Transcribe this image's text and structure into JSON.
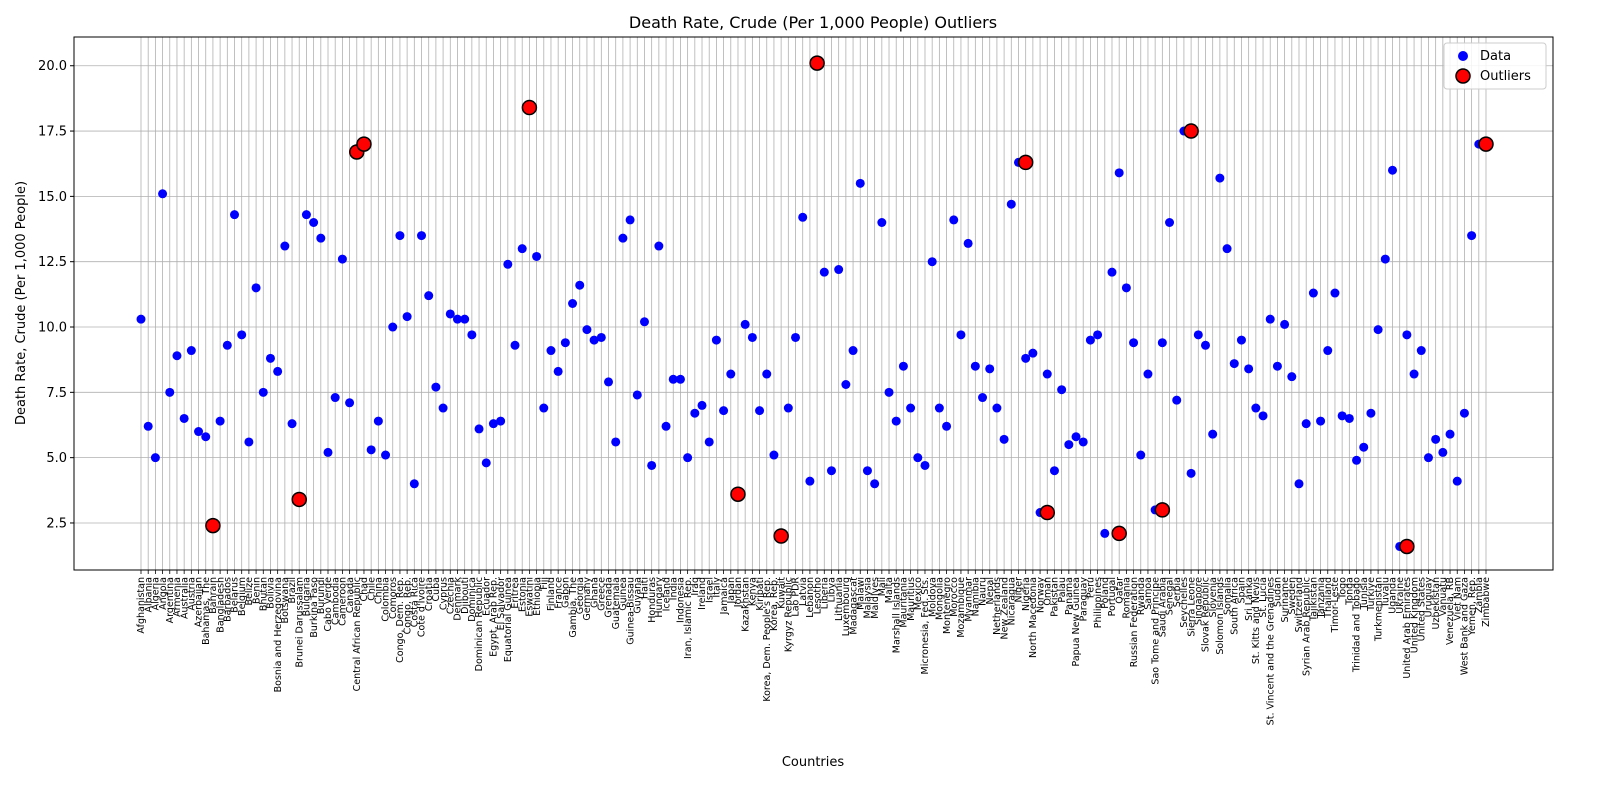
{
  "chart_data": {
    "type": "scatter",
    "title": "Death Rate, Crude (Per 1,000 People) Outliers",
    "xlabel": "Countries",
    "ylabel": "Death Rate, Crude (Per 1,000 People)",
    "ylim": [
      0.7,
      21.1
    ],
    "yticks": [
      "2.5",
      "5.0",
      "7.5",
      "10.0",
      "12.5",
      "15.0",
      "17.5",
      "20.0"
    ],
    "grid": true,
    "legend_position": "top-right",
    "colors": {
      "data": "#0000ff",
      "outlier_fill": "#ff0000",
      "outlier_edge": "#000000",
      "grid": "#b0b0b0"
    },
    "categories": [
      "Afghanistan",
      "Albania",
      "Algeria",
      "Angola",
      "Argentina",
      "Armenia",
      "Australia",
      "Austria",
      "Azerbaijan",
      "Bahamas, The",
      "Bahrain",
      "Bangladesh",
      "Barbados",
      "Belarus",
      "Belgium",
      "Belize",
      "Benin",
      "Bhutan",
      "Bolivia",
      "Bosnia and Herzegovina",
      "Botswana",
      "Brazil",
      "Brunei Darussalam",
      "Bulgaria",
      "Burkina Faso",
      "Burundi",
      "Cabo Verde",
      "Cambodia",
      "Cameroon",
      "Canada",
      "Central African Republic",
      "Chad",
      "Chile",
      "China",
      "Colombia",
      "Comoros",
      "Congo, Dem. Rep.",
      "Congo, Rep.",
      "Costa Rica",
      "Cote d'Ivoire",
      "Croatia",
      "Cuba",
      "Cyprus",
      "Czechia",
      "Denmark",
      "Djibouti",
      "Dominica",
      "Dominican Republic",
      "Ecuador",
      "Egypt, Arab Rep.",
      "El Salvador",
      "Equatorial Guinea",
      "Eritrea",
      "Estonia",
      "Eswatini",
      "Ethiopia",
      "Fiji",
      "Finland",
      "France",
      "Gabon",
      "Gambia, The",
      "Georgia",
      "Germany",
      "Ghana",
      "Greece",
      "Grenada",
      "Guatemala",
      "Guinea",
      "Guinea-Bissau",
      "Guyana",
      "Haiti",
      "Honduras",
      "Hungary",
      "Iceland",
      "India",
      "Indonesia",
      "Iran, Islamic Rep.",
      "Iraq",
      "Ireland",
      "Israel",
      "Italy",
      "Jamaica",
      "Japan",
      "Jordan",
      "Kazakhstan",
      "Kenya",
      "Kiribati",
      "Korea, Dem. People's Rep.",
      "Korea, Rep.",
      "Kuwait",
      "Kyrgyz Republic",
      "Lao PDR",
      "Latvia",
      "Lebanon",
      "Lesotho",
      "Liberia",
      "Libya",
      "Lithuania",
      "Luxembourg",
      "Madagascar",
      "Malawi",
      "Malaysia",
      "Maldives",
      "Mali",
      "Malta",
      "Marshall Islands",
      "Mauritania",
      "Mauritius",
      "Mexico",
      "Micronesia, Fed. Sts.",
      "Moldova",
      "Mongolia",
      "Montenegro",
      "Morocco",
      "Mozambique",
      "Myanmar",
      "Namibia",
      "Nauru",
      "Nepal",
      "Netherlands",
      "New Zealand",
      "Nicaragua",
      "Niger",
      "Nigeria",
      "North Macedonia",
      "Norway",
      "Oman",
      "Pakistan",
      "Palau",
      "Panama",
      "Papua New Guinea",
      "Paraguay",
      "Peru",
      "Philippines",
      "Poland",
      "Portugal",
      "Qatar",
      "Romania",
      "Russian Federation",
      "Rwanda",
      "Samoa",
      "Sao Tome and Principe",
      "Saudi Arabia",
      "Senegal",
      "Serbia",
      "Seychelles",
      "Sierra Leone",
      "Singapore",
      "Slovak Republic",
      "Slovenia",
      "Solomon Islands",
      "Somalia",
      "South Africa",
      "Spain",
      "Sri Lanka",
      "St. Kitts and Nevis",
      "St. Lucia",
      "St. Vincent and the Grenadines",
      "Sudan",
      "Suriname",
      "Sweden",
      "Switzerland",
      "Syrian Arab Republic",
      "Tajikistan",
      "Tanzania",
      "Thailand",
      "Timor-Leste",
      "Togo",
      "Tonga",
      "Trinidad and Tobago",
      "Tunisia",
      "Turkiye",
      "Turkmenistan",
      "Tuvalu",
      "Uganda",
      "Ukraine",
      "United Arab Emirates",
      "United Kingdom",
      "United States",
      "Uruguay",
      "Uzbekistan",
      "Vanuatu",
      "Venezuela, RB",
      "Viet Nam",
      "West Bank and Gaza",
      "Yemen, Rep.",
      "Zambia",
      "Zimbabwe"
    ],
    "series": [
      {
        "name": "Data",
        "values": [
          10.3,
          6.2,
          5.0,
          15.1,
          7.5,
          8.9,
          6.5,
          9.1,
          6.0,
          5.8,
          2.4,
          6.4,
          9.3,
          14.3,
          9.7,
          5.6,
          11.5,
          7.5,
          8.8,
          8.3,
          13.1,
          6.3,
          3.4,
          14.3,
          14.0,
          13.4,
          5.2,
          7.3,
          12.6,
          7.1,
          16.7,
          17.0,
          5.3,
          6.4,
          5.1,
          10.0,
          13.5,
          10.4,
          4.0,
          13.5,
          11.2,
          7.7,
          6.9,
          10.5,
          10.3,
          10.3,
          9.7,
          6.1,
          4.8,
          6.3,
          6.4,
          12.4,
          9.3,
          13.0,
          18.4,
          12.7,
          6.9,
          9.1,
          8.3,
          9.4,
          10.9,
          11.6,
          9.9,
          9.5,
          9.6,
          7.9,
          5.6,
          13.4,
          14.1,
          7.4,
          10.2,
          4.7,
          13.1,
          6.2,
          8.0,
          8.0,
          5.0,
          6.7,
          7.0,
          5.6,
          9.5,
          6.8,
          8.2,
          3.6,
          10.1,
          9.6,
          6.8,
          8.2,
          5.1,
          2.0,
          6.9,
          9.6,
          14.2,
          4.1,
          20.1,
          12.1,
          4.5,
          12.2,
          7.8,
          9.1,
          15.5,
          4.5,
          4.0,
          14.0,
          7.5,
          6.4,
          8.5,
          6.9,
          5.0,
          4.7,
          12.5,
          6.9,
          6.2,
          14.1,
          9.7,
          13.2,
          8.5,
          7.3,
          8.4,
          6.9,
          5.7,
          14.7,
          16.3,
          8.8,
          9.0,
          2.9,
          8.2,
          4.5,
          7.6,
          5.5,
          5.8,
          5.6,
          9.5,
          9.7,
          2.1,
          12.1,
          15.9,
          11.5,
          9.4,
          5.1,
          8.2,
          3.0,
          9.4,
          14.0,
          7.2,
          17.5,
          4.4,
          9.7,
          9.3,
          5.9,
          15.7,
          13.0,
          8.6,
          9.5,
          8.4,
          6.9,
          6.6,
          10.3,
          8.5,
          10.1,
          8.1,
          4.0,
          6.3,
          11.3,
          6.4,
          9.1,
          11.3,
          6.6,
          6.5,
          4.9,
          5.4,
          6.7,
          9.9,
          12.6,
          16.0,
          1.6,
          9.7,
          8.2,
          9.1,
          5.0,
          5.7,
          5.2,
          5.9,
          4.1,
          6.7,
          13.5,
          17.0
        ]
      },
      {
        "name": "Outliers",
        "x": [
          "Bahrain",
          "Brunei Darussalam",
          "Central African Republic",
          "Chad",
          "Eswatini",
          "Jordan",
          "Kuwait",
          "Lesotho",
          "Nigeria",
          "Oman",
          "Qatar",
          "Saudi Arabia",
          "Sierra Leone",
          "United Arab Emirates",
          "Zimbabwe"
        ],
        "values": [
          2.4,
          3.4,
          16.7,
          17.0,
          18.4,
          3.6,
          2.0,
          20.1,
          16.3,
          2.9,
          2.1,
          3.0,
          17.5,
          1.6,
          17.0
        ]
      }
    ]
  }
}
